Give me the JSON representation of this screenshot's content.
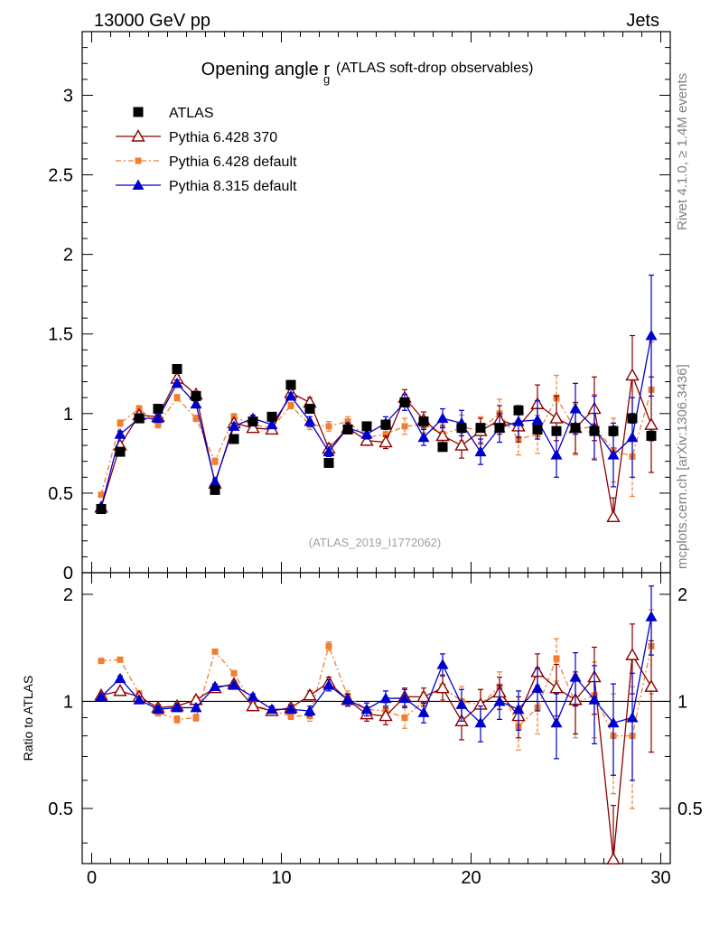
{
  "header": {
    "left": "13000 GeV pp",
    "right": "Jets"
  },
  "side": {
    "rivet": "Rivet 4.1.0, ≥ 1.4M events",
    "mcplots": "mcplots.cern.ch [arXiv:1306.3436]"
  },
  "chart_data": {
    "type": "scatter",
    "title_main": "Opening angle r",
    "title_sub": "g",
    "title_paren": "(ATLAS soft-drop observables)",
    "analysis_label": "(ATLAS_2019_I1772062)",
    "x_ticks": [
      "0",
      "10",
      "20",
      "30"
    ],
    "xlim": [
      -0.5,
      30.5
    ],
    "main": {
      "ylim": [
        0,
        3.4
      ],
      "y_ticks": [
        "0",
        "0.5",
        "1",
        "1.5",
        "2",
        "2.5",
        "3"
      ]
    },
    "ratio": {
      "ylabel": "Ratio to ATLAS",
      "ylim": [
        0.35,
        2.3
      ],
      "y_ticks": [
        "0.5",
        "1",
        "2"
      ]
    },
    "x": [
      0.5,
      1.5,
      2.5,
      3.5,
      4.5,
      5.5,
      6.5,
      7.5,
      8.5,
      9.5,
      10.5,
      11.5,
      12.5,
      13.5,
      14.5,
      15.5,
      16.5,
      17.5,
      18.5,
      19.5,
      20.5,
      21.5,
      22.5,
      23.5,
      24.5,
      25.5,
      26.5,
      27.5,
      28.5,
      29.5
    ],
    "series": [
      {
        "name": "ATLAS",
        "color": "#000000",
        "marker": "square",
        "values": [
          0.4,
          0.76,
          0.97,
          1.03,
          1.28,
          1.11,
          0.52,
          0.84,
          0.95,
          0.98,
          1.18,
          1.03,
          0.69,
          0.9,
          0.92,
          0.93,
          1.07,
          0.95,
          0.79,
          0.91,
          0.91,
          0.91,
          1.02,
          0.9,
          0.89,
          0.91,
          0.89,
          0.89,
          0.97,
          0.86
        ],
        "errors": [
          0.01,
          0.01,
          0.01,
          0.01,
          0.01,
          0.01,
          0.01,
          0.01,
          0.01,
          0.01,
          0.01,
          0.01,
          0.01,
          0.01,
          0.01,
          0.01,
          0.01,
          0.01,
          0.01,
          0.02,
          0.02,
          0.02,
          0.02,
          0.02,
          0.02,
          0.02,
          0.02,
          0.03,
          0.03,
          0.03
        ]
      },
      {
        "name": "Pythia 6.428 370",
        "color": "#8b0000",
        "marker": "triangle-open",
        "values": [
          0.41,
          0.8,
          0.99,
          0.98,
          1.22,
          1.12,
          0.56,
          0.94,
          0.91,
          0.9,
          1.13,
          1.07,
          0.78,
          0.91,
          0.83,
          0.82,
          1.1,
          0.96,
          0.86,
          0.8,
          0.89,
          0.96,
          0.92,
          1.06,
          0.97,
          0.91,
          1.03,
          0.35,
          1.24,
          0.93
        ],
        "errors": [
          0.01,
          0.02,
          0.02,
          0.02,
          0.02,
          0.02,
          0.02,
          0.02,
          0.02,
          0.02,
          0.02,
          0.03,
          0.03,
          0.03,
          0.03,
          0.04,
          0.05,
          0.05,
          0.06,
          0.08,
          0.08,
          0.09,
          0.1,
          0.12,
          0.14,
          0.16,
          0.2,
          0.12,
          0.25,
          0.3
        ]
      },
      {
        "name": "Pythia 6.428 default",
        "color": "#f07f30",
        "marker": "square-small",
        "values": [
          0.49,
          0.94,
          1.03,
          0.93,
          1.1,
          0.97,
          0.7,
          0.98,
          0.93,
          0.91,
          1.05,
          0.93,
          0.92,
          0.95,
          0.85,
          0.87,
          0.92,
          0.93,
          0.87,
          0.91,
          0.9,
          1.0,
          0.84,
          0.87,
          1.1,
          0.9,
          0.92,
          0.77,
          0.73,
          1.15
        ],
        "errors": [
          0.01,
          0.02,
          0.02,
          0.02,
          0.02,
          0.02,
          0.02,
          0.02,
          0.02,
          0.02,
          0.02,
          0.03,
          0.03,
          0.03,
          0.03,
          0.04,
          0.05,
          0.05,
          0.06,
          0.08,
          0.08,
          0.09,
          0.1,
          0.12,
          0.14,
          0.16,
          0.2,
          0.2,
          0.25,
          0.3
        ]
      },
      {
        "name": "Pythia 8.315 default",
        "color": "#0000cc",
        "marker": "triangle",
        "values": [
          0.41,
          0.87,
          0.97,
          0.97,
          1.19,
          1.06,
          0.57,
          0.92,
          0.97,
          0.93,
          1.11,
          0.95,
          0.76,
          0.91,
          0.87,
          0.94,
          1.07,
          0.85,
          0.97,
          0.94,
          0.76,
          0.91,
          0.95,
          0.96,
          0.74,
          1.03,
          0.91,
          0.74,
          0.85,
          1.49
        ],
        "errors": [
          0.01,
          0.02,
          0.02,
          0.02,
          0.02,
          0.02,
          0.02,
          0.02,
          0.02,
          0.02,
          0.02,
          0.03,
          0.03,
          0.03,
          0.03,
          0.04,
          0.05,
          0.05,
          0.06,
          0.08,
          0.08,
          0.09,
          0.1,
          0.12,
          0.14,
          0.16,
          0.2,
          0.2,
          0.25,
          0.38
        ]
      }
    ],
    "ratio_series": [
      {
        "name": "Pythia 6.428 370",
        "values": [
          1.04,
          1.07,
          1.03,
          0.96,
          0.97,
          1.01,
          1.09,
          1.12,
          0.97,
          0.94,
          0.96,
          1.04,
          1.13,
          1.01,
          0.92,
          0.91,
          1.03,
          1.03,
          1.09,
          0.88,
          0.98,
          1.06,
          0.91,
          1.21,
          1.09,
          1.01,
          1.17,
          0.36,
          1.35,
          1.1
        ],
        "errors": [
          0.01,
          0.02,
          0.02,
          0.02,
          0.02,
          0.02,
          0.02,
          0.02,
          0.02,
          0.02,
          0.02,
          0.03,
          0.04,
          0.04,
          0.04,
          0.05,
          0.06,
          0.06,
          0.09,
          0.1,
          0.1,
          0.11,
          0.12,
          0.15,
          0.18,
          0.2,
          0.25,
          0.15,
          0.3,
          0.38
        ]
      },
      {
        "name": "Pythia 6.428 default",
        "values": [
          1.3,
          1.31,
          1.05,
          0.93,
          0.89,
          0.9,
          1.38,
          1.2,
          0.98,
          0.94,
          0.91,
          0.91,
          1.43,
          1.03,
          0.95,
          0.94,
          0.9,
          1.0,
          1.1,
          1.0,
          0.98,
          1.1,
          0.85,
          0.96,
          1.32,
          0.99,
          1.04,
          0.8,
          0.8,
          1.43
        ],
        "errors": [
          0.01,
          0.02,
          0.02,
          0.02,
          0.02,
          0.02,
          0.02,
          0.02,
          0.02,
          0.02,
          0.02,
          0.03,
          0.04,
          0.04,
          0.04,
          0.05,
          0.06,
          0.06,
          0.09,
          0.1,
          0.1,
          0.11,
          0.12,
          0.15,
          0.18,
          0.2,
          0.25,
          0.25,
          0.3,
          0.38
        ]
      },
      {
        "name": "Pythia 8.315 default",
        "values": [
          1.03,
          1.16,
          1.01,
          0.95,
          0.96,
          0.96,
          1.1,
          1.11,
          1.03,
          0.95,
          0.95,
          0.94,
          1.11,
          1.01,
          0.95,
          1.02,
          1.02,
          0.93,
          1.27,
          0.98,
          0.87,
          1.0,
          0.95,
          1.09,
          0.87,
          1.17,
          1.01,
          0.87,
          0.9,
          1.73
        ],
        "errors": [
          0.01,
          0.02,
          0.02,
          0.02,
          0.02,
          0.02,
          0.02,
          0.02,
          0.02,
          0.02,
          0.02,
          0.03,
          0.04,
          0.04,
          0.04,
          0.05,
          0.06,
          0.06,
          0.09,
          0.1,
          0.1,
          0.11,
          0.12,
          0.15,
          0.18,
          0.2,
          0.25,
          0.25,
          0.3,
          0.38
        ]
      }
    ]
  }
}
